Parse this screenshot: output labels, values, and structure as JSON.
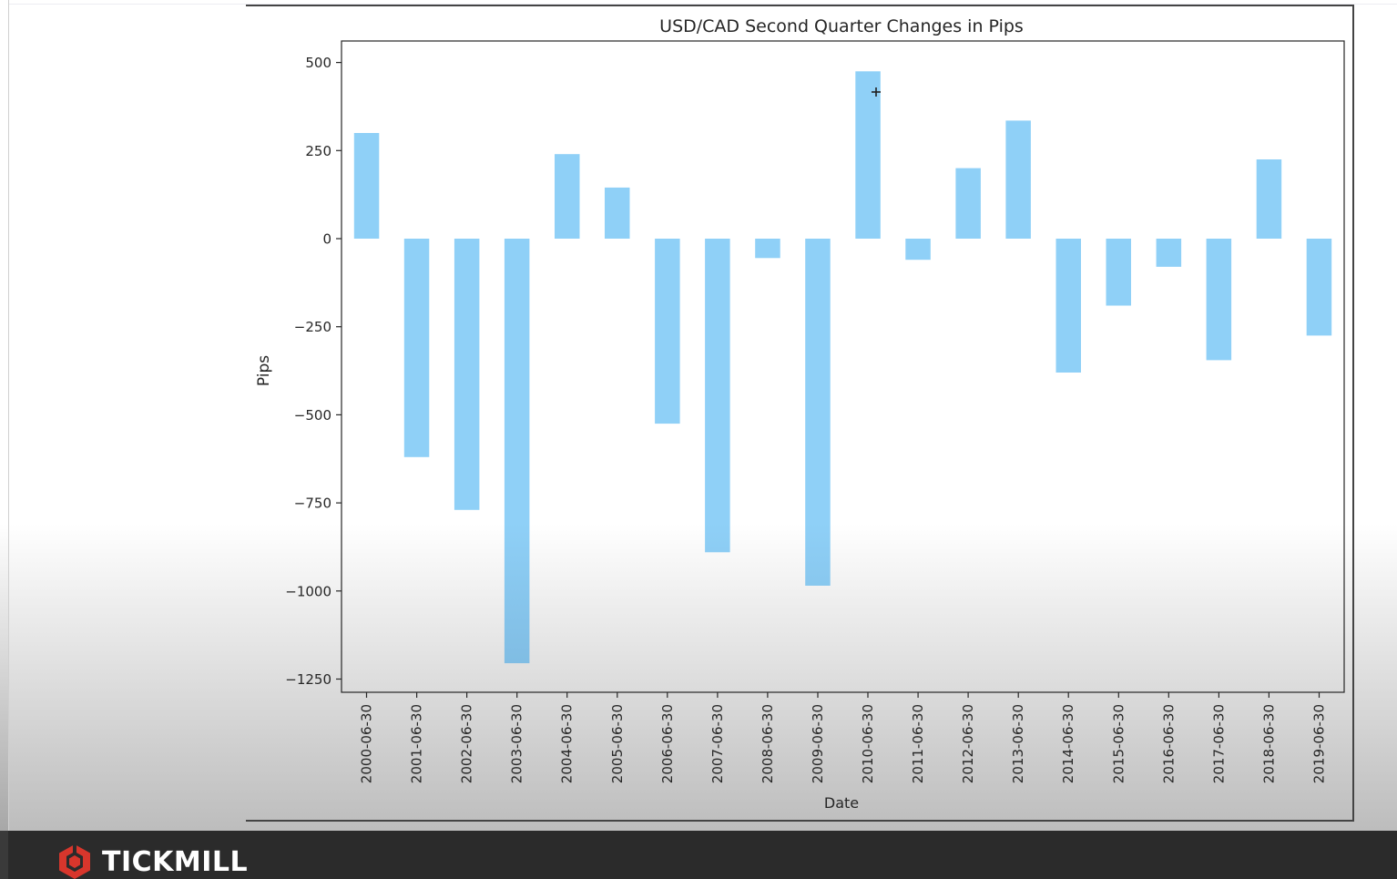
{
  "footer": {
    "brand_name": "TICKMILL",
    "logo_icon": "tickmill-hexagon-logo-icon",
    "logo_color": "#d8362c"
  },
  "chart_data": {
    "type": "bar",
    "title": "USD/CAD Second Quarter Changes in Pips",
    "xlabel": "Date",
    "ylabel": "Pips",
    "categories": [
      "2000-06-30",
      "2001-06-30",
      "2002-06-30",
      "2003-06-30",
      "2004-06-30",
      "2005-06-30",
      "2006-06-30",
      "2007-06-30",
      "2008-06-30",
      "2009-06-30",
      "2010-06-30",
      "2011-06-30",
      "2012-06-30",
      "2013-06-30",
      "2014-06-30",
      "2015-06-30",
      "2016-06-30",
      "2017-06-30",
      "2018-06-30",
      "2019-06-30"
    ],
    "values": [
      300,
      -620,
      -770,
      -1205,
      240,
      145,
      -525,
      -890,
      -55,
      -985,
      475,
      -60,
      200,
      335,
      -380,
      -190,
      -80,
      -345,
      225,
      -275
    ],
    "yticks": [
      500,
      250,
      0,
      -250,
      -500,
      -750,
      -1000,
      -1250
    ],
    "ytick_labels": [
      "500",
      "250",
      "0",
      "−250",
      "−500",
      "−750",
      "−1000",
      "−1250"
    ],
    "ylim": [
      -1290,
      565
    ],
    "grid": false,
    "legend": "none",
    "bar_color": "#8fd0f7",
    "bar_color_dark": "#79b4dc"
  }
}
